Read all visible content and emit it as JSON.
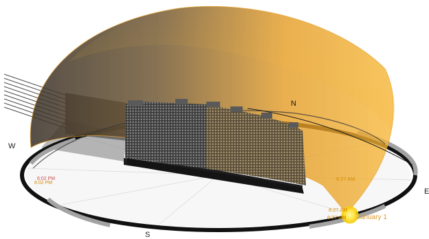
{
  "compass": {
    "north": "N",
    "south": "S",
    "east": "E",
    "west": "W"
  },
  "sunset": {
    "label_1": "6:02 PM",
    "label_2": "6:02 PM"
  },
  "sunrise": {
    "label_1": "8:27 AM",
    "label_2": "8:27 AM",
    "label_3": "8:27 AM"
  },
  "date": {
    "label": "January 1"
  },
  "colors": {
    "dome": "#f2a51c",
    "sun": "#ffe23a",
    "time_pm": "#c0504d",
    "time_am": "#d68a00",
    "date": "#d89a2a",
    "ring_dark": "#111111",
    "ring_light": "#9a9a9a",
    "building": "#2a2a2a"
  },
  "icons": {
    "sun": "sun-icon"
  }
}
